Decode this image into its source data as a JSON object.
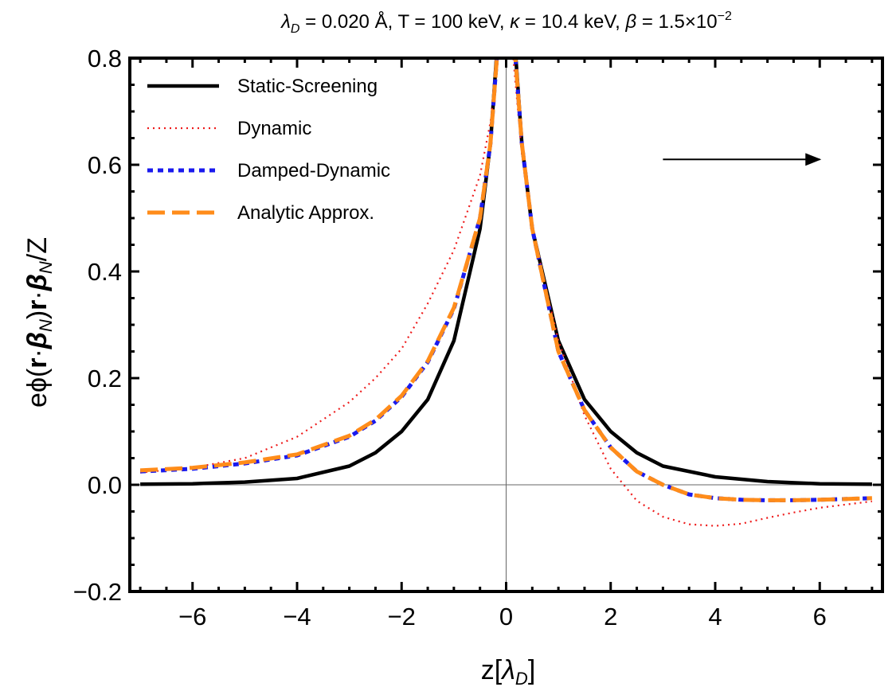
{
  "chart_data": {
    "type": "line",
    "title": "λ_D = 0.020 Å, T = 100 keV, κ = 10.4 keV, β = 1.5×10^−2",
    "title_parts": {
      "lambda": "λ",
      "lambda_sub": "D",
      "rest": " = 0.020 Å, T = 100 keV, ",
      "kappa": "κ",
      "rest2": " = 10.4 keV, ",
      "beta": "β",
      "rest3": " = 1.5×10",
      "exp": "−2"
    },
    "xlabel": "z[λ_D]",
    "xlabel_parts": {
      "main": "z[",
      "lambda": "λ",
      "sub": "D",
      "close": "]"
    },
    "ylabel": "eϕ(r·β_N)r·β_N/Z",
    "ylabel_parts": {
      "a": "eϕ(",
      "r1": "r",
      "dot1": "·",
      "beta1": "β",
      "sub1": "N",
      "b": ")",
      "r2": "r",
      "dot2": "·",
      "beta2": "β",
      "sub2": "N",
      "c": "/Z"
    },
    "xlim": [
      -7.2,
      7.2
    ],
    "ylim": [
      -0.2,
      0.8
    ],
    "x_ticks": [
      -6,
      -4,
      -2,
      0,
      2,
      4,
      6
    ],
    "x_tick_labels": [
      "−6",
      "−4",
      "−2",
      "0",
      "2",
      "4",
      "6"
    ],
    "y_ticks": [
      -0.2,
      0.0,
      0.2,
      0.4,
      0.6,
      0.8
    ],
    "y_tick_labels": [
      "−0.2",
      "0.0",
      "0.2",
      "0.4",
      "0.6",
      "0.8"
    ],
    "grid": false,
    "legend_position": "top-left",
    "arrow": {
      "from": [
        3.0,
        0.61
      ],
      "to": [
        6.0,
        0.61
      ],
      "meaning": "direction of motion"
    },
    "series": [
      {
        "name": "Static-Screening",
        "color": "#000000",
        "style": "solid",
        "x": [
          -7,
          -6,
          -5,
          -4,
          -3,
          -2.5,
          -2,
          -1.5,
          -1,
          -0.5,
          -0.3,
          -0.1,
          0.1,
          0.3,
          0.5,
          1,
          1.5,
          2,
          2.5,
          3,
          4,
          5,
          6,
          7
        ],
        "y": [
          0.001,
          0.002,
          0.005,
          0.012,
          0.035,
          0.06,
          0.1,
          0.16,
          0.27,
          0.48,
          0.64,
          0.92,
          0.92,
          0.64,
          0.48,
          0.27,
          0.16,
          0.1,
          0.06,
          0.035,
          0.015,
          0.006,
          0.002,
          0.001
        ]
      },
      {
        "name": "Dynamic",
        "color": "#ee1c1c",
        "style": "dotted",
        "x": [
          -7,
          -6,
          -5,
          -4,
          -3,
          -2.5,
          -2,
          -1.5,
          -1,
          -0.5,
          -0.3,
          -0.1,
          0.1,
          0.3,
          0.5,
          1,
          1.5,
          2,
          2.5,
          3,
          3.5,
          4,
          4.5,
          5,
          5.5,
          6,
          7
        ],
        "y": [
          0.023,
          0.032,
          0.05,
          0.09,
          0.155,
          0.2,
          0.255,
          0.34,
          0.44,
          0.58,
          0.68,
          0.84,
          0.84,
          0.62,
          0.48,
          0.27,
          0.13,
          0.03,
          -0.03,
          -0.06,
          -0.074,
          -0.077,
          -0.073,
          -0.062,
          -0.052,
          -0.043,
          -0.031
        ]
      },
      {
        "name": "Damped-Dynamic",
        "color": "#1a1aee",
        "style": "dotted",
        "x": [
          -7,
          -6,
          -5,
          -4,
          -3,
          -2.5,
          -2,
          -1.5,
          -1,
          -0.5,
          -0.3,
          -0.1,
          0.1,
          0.3,
          0.5,
          1,
          1.5,
          2,
          2.5,
          3,
          3.5,
          4,
          4.5,
          5,
          5.5,
          6,
          7
        ],
        "y": [
          0.025,
          0.03,
          0.04,
          0.055,
          0.09,
          0.12,
          0.165,
          0.23,
          0.33,
          0.5,
          0.64,
          0.9,
          0.9,
          0.64,
          0.48,
          0.25,
          0.14,
          0.07,
          0.025,
          0.0,
          -0.018,
          -0.025,
          -0.028,
          -0.029,
          -0.029,
          -0.028,
          -0.025
        ]
      },
      {
        "name": "Analytic Approx.",
        "color": "#ff8c1a",
        "style": "dashed",
        "x": [
          -7,
          -6,
          -5,
          -4,
          -3,
          -2.5,
          -2,
          -1.5,
          -1,
          -0.5,
          -0.3,
          -0.1,
          0.1,
          0.3,
          0.5,
          1,
          1.5,
          2,
          2.5,
          3,
          3.5,
          4,
          4.5,
          5,
          5.5,
          6,
          7
        ],
        "y": [
          0.027,
          0.032,
          0.042,
          0.057,
          0.092,
          0.122,
          0.167,
          0.232,
          0.332,
          0.5,
          0.64,
          0.9,
          0.9,
          0.64,
          0.48,
          0.25,
          0.14,
          0.07,
          0.025,
          0.0,
          -0.018,
          -0.025,
          -0.028,
          -0.029,
          -0.029,
          -0.028,
          -0.025
        ]
      }
    ]
  }
}
